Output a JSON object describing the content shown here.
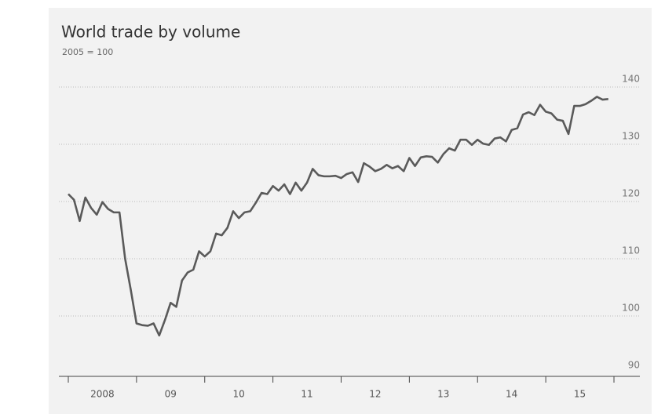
{
  "chart_data": {
    "type": "line",
    "title": "World trade by volume",
    "subtitle": "2005 = 100",
    "x": [
      2008,
      2008.083,
      2008.167,
      2008.25,
      2008.333,
      2008.417,
      2008.5,
      2008.583,
      2008.667,
      2008.75,
      2008.833,
      2008.917,
      2009,
      2009.083,
      2009.167,
      2009.25,
      2009.333,
      2009.417,
      2009.5,
      2009.583,
      2009.667,
      2009.75,
      2009.833,
      2009.917,
      2010,
      2010.083,
      2010.167,
      2010.25,
      2010.333,
      2010.417,
      2010.5,
      2010.583,
      2010.667,
      2010.75,
      2010.833,
      2010.917,
      2011,
      2011.083,
      2011.167,
      2011.25,
      2011.333,
      2011.417,
      2011.5,
      2011.583,
      2011.667,
      2011.75,
      2011.833,
      2011.917,
      2012,
      2012.083,
      2012.167,
      2012.25,
      2012.333,
      2012.417,
      2012.5,
      2012.583,
      2012.667,
      2012.75,
      2012.833,
      2012.917,
      2013,
      2013.083,
      2013.167,
      2013.25,
      2013.333,
      2013.417,
      2013.5,
      2013.583,
      2013.667,
      2013.75,
      2013.833,
      2013.917,
      2014,
      2014.083,
      2014.167,
      2014.25,
      2014.333,
      2014.417,
      2014.5,
      2014.583,
      2014.667,
      2014.75,
      2014.833,
      2014.917,
      2015,
      2015.083,
      2015.167,
      2015.25,
      2015.333,
      2015.417,
      2015.5,
      2015.583,
      2015.667,
      2015.75,
      2015.833,
      2015.917
    ],
    "series": [
      {
        "color": "#5a5a5a",
        "values": [
          121.3,
          120.3,
          116.6,
          120.7,
          118.9,
          117.7,
          119.9,
          118.7,
          118.1,
          118.1,
          110.0,
          104.5,
          98.7,
          98.4,
          98.3,
          98.7,
          96.6,
          99.3,
          102.3,
          101.6,
          106.2,
          107.6,
          108.1,
          111.3,
          110.4,
          111.3,
          114.4,
          114.1,
          115.4,
          118.3,
          117.1,
          118.1,
          118.3,
          119.8,
          121.5,
          121.3,
          122.7,
          121.9,
          123.0,
          121.3,
          123.3,
          121.9,
          123.3,
          125.7,
          124.6,
          124.4,
          124.4,
          124.5,
          124.1,
          124.8,
          125.1,
          123.4,
          126.7,
          126.1,
          125.3,
          125.7,
          126.4,
          125.8,
          126.2,
          125.3,
          127.6,
          126.2,
          127.7,
          127.9,
          127.8,
          126.8,
          128.3,
          129.3,
          128.9,
          130.8,
          130.8,
          129.9,
          130.8,
          130.1,
          129.9,
          131.0,
          131.2,
          130.5,
          132.5,
          132.8,
          135.2,
          135.6,
          135.1,
          136.9,
          135.7,
          135.4,
          134.3,
          134.1,
          131.8,
          136.7,
          136.7,
          137.0,
          137.6,
          138.3,
          137.8,
          137.9
        ]
      }
    ],
    "xlim": [
      2008,
      2016
    ],
    "xticks": [
      2008,
      2009,
      2010,
      2011,
      2012,
      2013,
      2014,
      2015,
      2016
    ],
    "xtick_labels": [
      {
        "value": 2008.5,
        "label": "2008"
      },
      {
        "value": 2009.5,
        "label": "09"
      },
      {
        "value": 2010.5,
        "label": "10"
      },
      {
        "value": 2011.5,
        "label": "11"
      },
      {
        "value": 2012.5,
        "label": "12"
      },
      {
        "value": 2013.5,
        "label": "13"
      },
      {
        "value": 2014.5,
        "label": "14"
      },
      {
        "value": 2015.5,
        "label": "15"
      }
    ],
    "ylim": [
      90,
      140
    ],
    "yticks": [
      90,
      100,
      110,
      120,
      130,
      140
    ],
    "grid": true
  }
}
